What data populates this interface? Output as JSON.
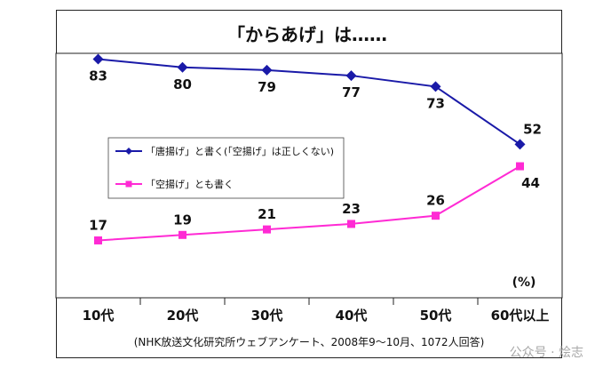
{
  "chart_data": {
    "type": "line",
    "title": "「からあげ」は……",
    "categories": [
      "10代",
      "20代",
      "30代",
      "40代",
      "50代",
      "60代以上"
    ],
    "series": [
      {
        "name": "「唐揚げ」と書く(「空揚げ」は正しくない)",
        "values": [
          83,
          80,
          79,
          77,
          73,
          52
        ],
        "color": "#1a1aa8",
        "marker": "diamond"
      },
      {
        "name": "「空揚げ」とも書く",
        "values": [
          17,
          19,
          21,
          23,
          26,
          44
        ],
        "color": "#ff2ad4",
        "marker": "square"
      }
    ],
    "unit_label": "(%)",
    "source_note": "(NHK放送文化研究所ウェブアンケート、2008年9〜10月、1072人回答)",
    "ylim": [
      0,
      100
    ],
    "grid": false,
    "legend": "left"
  },
  "watermark": "公众号 · 烩志"
}
